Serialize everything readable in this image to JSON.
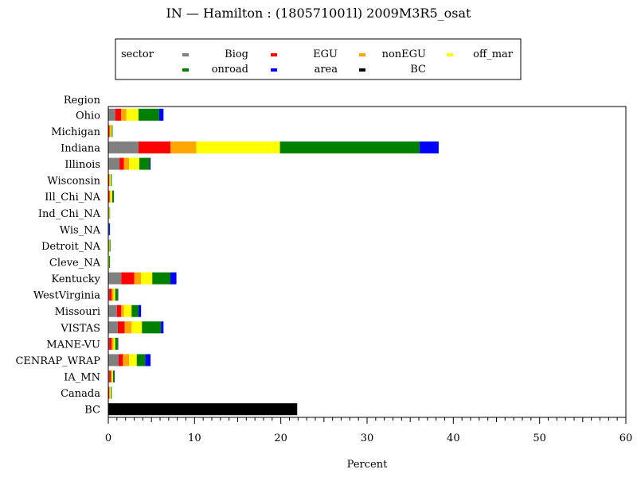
{
  "chart_data": {
    "type": "bar",
    "orientation": "horizontal",
    "stacked": true,
    "title": "IN — Hamilton : (180571001l) 2009M3R5_osat",
    "xlabel": "Percent",
    "ylabel": "Region",
    "xlim": [
      0,
      60
    ],
    "x_ticks": [
      0,
      10,
      20,
      30,
      40,
      50,
      60
    ],
    "grid": false,
    "legend": {
      "title": "sector",
      "placement": "top",
      "entries": [
        {
          "name": "Biog",
          "color": "#808080"
        },
        {
          "name": "EGU",
          "color": "#ff0000"
        },
        {
          "name": "nonEGU",
          "color": "#ffa500"
        },
        {
          "name": "off_mar",
          "color": "#ffff00"
        },
        {
          "name": "onroad",
          "color": "#008000"
        },
        {
          "name": "area",
          "color": "#0000ff"
        },
        {
          "name": "BC",
          "color": "#000000"
        }
      ]
    },
    "categories": [
      "Ohio",
      "Michigan",
      "Indiana",
      "Illinois",
      "Wisconsin",
      "Ill_Chi_NA",
      "Ind_Chi_NA",
      "Wis_NA",
      "Detroit_NA",
      "Cleve_NA",
      "Kentucky",
      "WestVirginia",
      "Missouri",
      "VISTAS",
      "MANE-VU",
      "CENRAP_WRAP",
      "IA_MN",
      "Canada",
      "BC"
    ],
    "series": [
      {
        "name": "Biog",
        "color": "#808080",
        "values": [
          0.8,
          0.05,
          3.5,
          1.3,
          0.05,
          0.05,
          0.05,
          0.0,
          0.05,
          0.05,
          1.5,
          0.1,
          1.0,
          1.1,
          0.1,
          1.2,
          0.1,
          0.05,
          0
        ]
      },
      {
        "name": "EGU",
        "color": "#ff0000",
        "values": [
          0.7,
          0.1,
          3.7,
          0.5,
          0.05,
          0.1,
          0.0,
          0.0,
          0.0,
          0.0,
          1.5,
          0.3,
          0.5,
          0.8,
          0.3,
          0.5,
          0.2,
          0.05,
          0
        ]
      },
      {
        "name": "nonEGU",
        "color": "#ffa500",
        "values": [
          0.6,
          0.15,
          3.0,
          0.6,
          0.1,
          0.1,
          0.05,
          0.0,
          0.05,
          0.0,
          0.8,
          0.2,
          0.3,
          0.8,
          0.2,
          0.7,
          0.15,
          0.1,
          0
        ]
      },
      {
        "name": "off_mar",
        "color": "#ffff00",
        "values": [
          1.4,
          0.1,
          9.7,
          1.2,
          0.1,
          0.2,
          0.05,
          0.05,
          0.05,
          0.05,
          1.3,
          0.2,
          0.9,
          1.2,
          0.2,
          0.9,
          0.1,
          0.1,
          0
        ]
      },
      {
        "name": "onroad",
        "color": "#008000",
        "values": [
          2.4,
          0.1,
          16.2,
          1.2,
          0.1,
          0.2,
          0.05,
          0.05,
          0.1,
          0.1,
          2.1,
          0.3,
          0.8,
          2.2,
          0.3,
          1.0,
          0.15,
          0.1,
          0
        ]
      },
      {
        "name": "area",
        "color": "#0000ff",
        "values": [
          0.5,
          0.0,
          2.2,
          0.1,
          0.0,
          0.0,
          0.0,
          0.1,
          0.0,
          0.0,
          0.7,
          0.05,
          0.3,
          0.3,
          0.05,
          0.6,
          0.05,
          0.0,
          0
        ]
      },
      {
        "name": "BC",
        "color": "#000000",
        "values": [
          0,
          0,
          0,
          0,
          0,
          0,
          0,
          0,
          0,
          0,
          0,
          0,
          0,
          0,
          0,
          0,
          0,
          0,
          21.9
        ]
      }
    ]
  }
}
